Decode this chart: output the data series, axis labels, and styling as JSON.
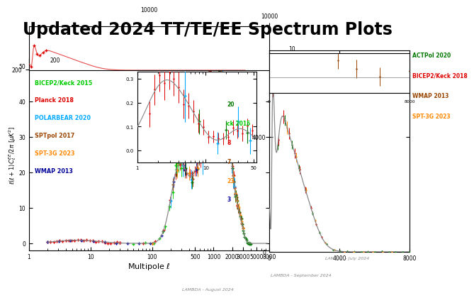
{
  "title": "Updated 2024 TT/TE/EE Spectrum Plots",
  "title_fontsize": 17,
  "title_fontweight": "bold",
  "legend_ee": [
    {
      "label": "ACTPol 2020",
      "color": "#007700"
    },
    {
      "label": "BICEP2/Keck 2015",
      "color": "#00cc00"
    },
    {
      "label": "Planck 2018",
      "color": "#dd0000"
    },
    {
      "label": "POLARBEAR 2020",
      "color": "#00aaff"
    },
    {
      "label": "SPTpol 2017",
      "color": "#994400"
    },
    {
      "label": "SPT-3G 2023",
      "color": "#ff8800"
    },
    {
      "label": "WMAP 2013",
      "color": "#000099"
    }
  ],
  "legend_right_top": [
    {
      "label": "ACTPol 2020",
      "color": "#007700"
    },
    {
      "label": "BICEP2/Keck 2018",
      "color": "#dd0000"
    },
    {
      "label": "WMAP 2013",
      "color": "#994400"
    },
    {
      "label": "SPT-3G 2023",
      "color": "#ff8800"
    }
  ],
  "legend_right_bottom": [
    {
      "label": "20",
      "color": "#007700"
    },
    {
      "label": "ck 2015",
      "color": "#00cc00"
    },
    {
      "label": "8",
      "color": "#dd0000"
    },
    {
      "label": "7",
      "color": "#994400"
    },
    {
      "label": "23",
      "color": "#ff8800"
    },
    {
      "label": "3",
      "color": "#000099"
    }
  ],
  "watermark_bottom": "LAMBDA - August 2024",
  "watermark_mid": "LAMBDA - September 2024",
  "watermark_right": "LAMBDA - July 2024",
  "xlabel": "Multipole $\\ell$",
  "ylabel_ee": "$\\ell(\\ell+1)C_\\ell^{EE}/2\\pi\\ [\\mu K^2]$"
}
